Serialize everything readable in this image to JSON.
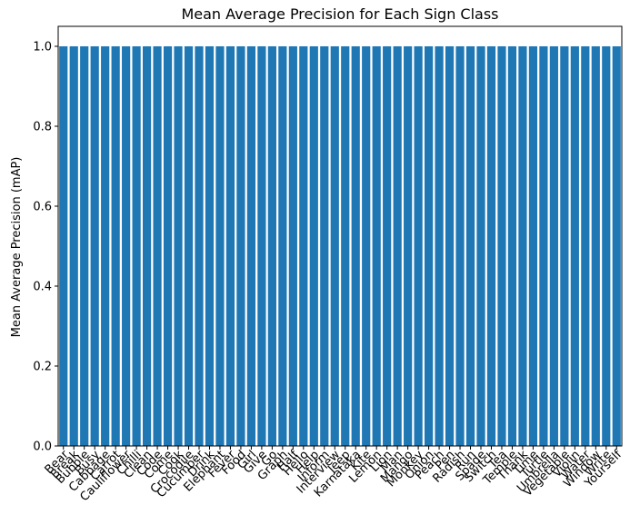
{
  "chart_data": {
    "type": "bar",
    "title": "Mean Average Precision for Each Sign Class",
    "xlabel": "",
    "ylabel": "Mean Average Precision (mAP)",
    "ylim": [
      0,
      1.05
    ],
    "yticks": [
      "0.0",
      "0.2",
      "0.4",
      "0.6",
      "0.8",
      "1.0"
    ],
    "grid": false,
    "bar_color": "#1f77b4",
    "categories": [
      "Bear",
      "Break",
      "Bubble",
      "Busy",
      "Cabbage",
      "Carrot",
      "Cauliflower",
      "Chilli",
      "Clean",
      "Code",
      "Come",
      "Cook",
      "Crocodile",
      "Cucumber",
      "Drink",
      "Elephant",
      "Fever",
      "Food",
      "Girl",
      "Give",
      "Go",
      "Graph",
      "Half",
      "Hello",
      "Help",
      "Inform",
      "Interview",
      "Jeep",
      "Karnataka",
      "Kite",
      "Lemon",
      "Lion",
      "Man",
      "Mango",
      "Monkey",
      "Onion",
      "Peach",
      "Pen",
      "Radish",
      "Run",
      "Spade",
      "Switch",
      "Tea",
      "Temple",
      "Thank",
      "Time",
      "Turtle",
      "Umbrella",
      "Vegetable",
      "Violin",
      "Water",
      "Window",
      "Write",
      "Yourself"
    ],
    "values": [
      1.0,
      1.0,
      1.0,
      1.0,
      1.0,
      1.0,
      1.0,
      1.0,
      1.0,
      1.0,
      1.0,
      1.0,
      1.0,
      1.0,
      1.0,
      1.0,
      1.0,
      1.0,
      1.0,
      1.0,
      1.0,
      1.0,
      1.0,
      1.0,
      1.0,
      1.0,
      1.0,
      1.0,
      1.0,
      1.0,
      1.0,
      1.0,
      1.0,
      1.0,
      1.0,
      1.0,
      1.0,
      1.0,
      1.0,
      1.0,
      1.0,
      1.0,
      1.0,
      1.0,
      1.0,
      1.0,
      1.0,
      1.0,
      1.0,
      1.0,
      1.0,
      1.0,
      1.0,
      1.0
    ]
  }
}
